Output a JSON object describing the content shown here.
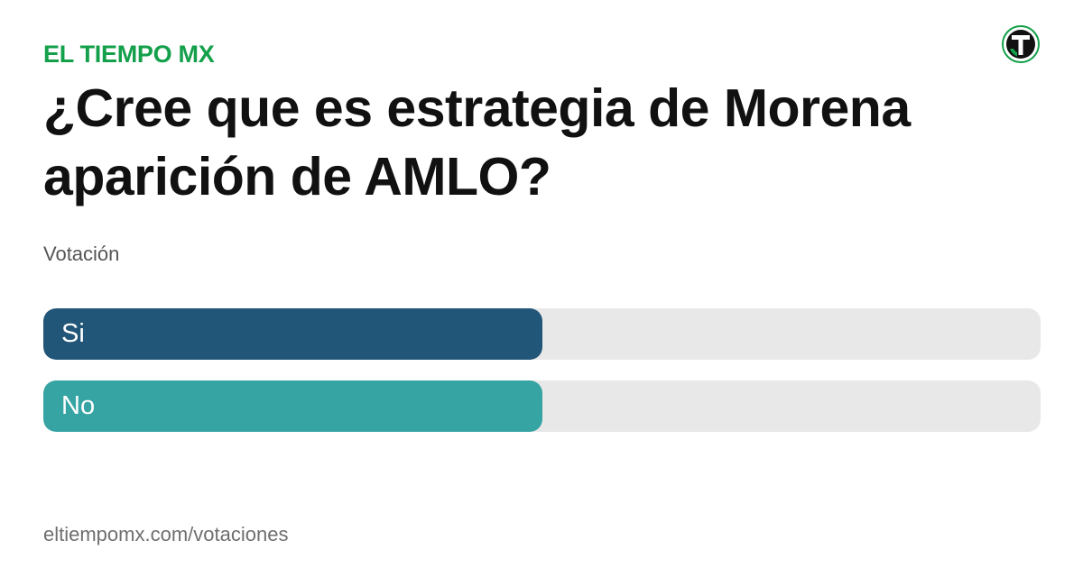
{
  "brand": {
    "name": "EL TIEMPO MX",
    "color": "#14a04b"
  },
  "logo": {
    "icon": "el-tiempo-logo-icon",
    "colors": {
      "ring": "#14a04b",
      "inner": "#111111",
      "letter": "#ffffff"
    }
  },
  "poll": {
    "question": "¿Cree que es estrategia de Morena aparición de AMLO?",
    "subtitle": "Votación",
    "options": [
      {
        "label": "Si",
        "share": 0.5,
        "color": "#225678"
      },
      {
        "label": "No",
        "share": 0.5,
        "color": "#37a4a4"
      }
    ]
  },
  "footer": {
    "url": "eltiempomx.com/votaciones"
  }
}
